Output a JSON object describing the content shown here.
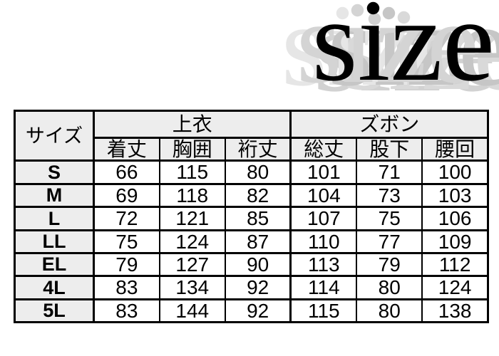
{
  "title": "size",
  "colors": {
    "title_text": "#000000",
    "title_echo": "#cccccc",
    "table_border": "#000000",
    "header_bg": "#ededed",
    "cell_bg": "#ffffff"
  },
  "chart_data": {
    "type": "table",
    "title": "size",
    "corner_header": "サイズ",
    "column_groups": [
      {
        "label": "上衣",
        "columns": [
          "着丈",
          "胸囲",
          "裄丈"
        ]
      },
      {
        "label": "ズボン",
        "columns": [
          "総丈",
          "股下",
          "腰回"
        ]
      }
    ],
    "rows": [
      {
        "size": "S",
        "values": [
          66,
          115,
          80,
          101,
          71,
          100
        ]
      },
      {
        "size": "M",
        "values": [
          69,
          118,
          82,
          104,
          73,
          103
        ]
      },
      {
        "size": "L",
        "values": [
          72,
          121,
          85,
          107,
          75,
          106
        ]
      },
      {
        "size": "LL",
        "values": [
          75,
          124,
          87,
          110,
          77,
          109
        ]
      },
      {
        "size": "EL",
        "values": [
          79,
          127,
          90,
          113,
          79,
          112
        ]
      },
      {
        "size": "4L",
        "values": [
          83,
          134,
          92,
          114,
          80,
          124
        ]
      },
      {
        "size": "5L",
        "values": [
          83,
          144,
          92,
          115,
          80,
          138
        ]
      }
    ]
  }
}
